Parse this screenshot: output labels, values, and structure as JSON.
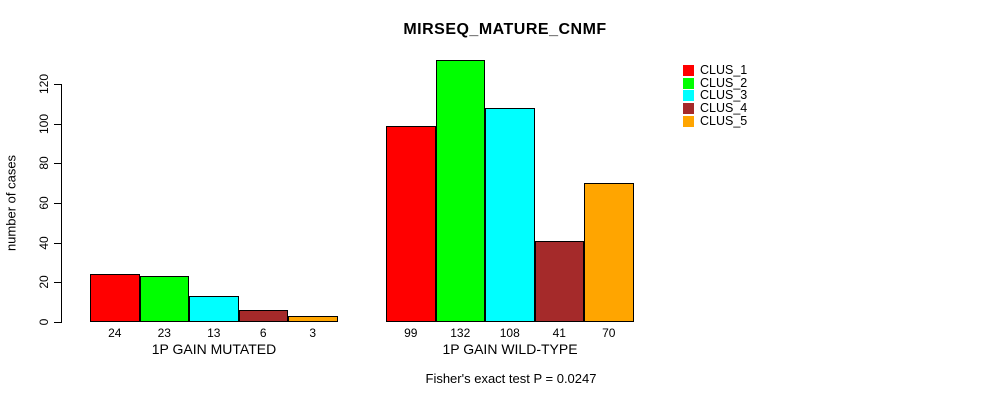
{
  "chart_data": {
    "type": "bar",
    "title": "MIRSEQ_MATURE_CNMF",
    "ylabel": "number of cases",
    "xlabel": "",
    "categories": [
      "1P GAIN MUTATED",
      "1P GAIN WILD-TYPE"
    ],
    "series": [
      {
        "name": "CLUS_1",
        "color": "#FF0000",
        "values": [
          24,
          99
        ]
      },
      {
        "name": "CLUS_2",
        "color": "#00FF00",
        "values": [
          23,
          132
        ]
      },
      {
        "name": "CLUS_3",
        "color": "#00FFFF",
        "values": [
          13,
          108
        ]
      },
      {
        "name": "CLUS_4",
        "color": "#A52A2A",
        "values": [
          6,
          41
        ]
      },
      {
        "name": "CLUS_5",
        "color": "#FFA500",
        "values": [
          3,
          70
        ]
      }
    ],
    "yticks": [
      0,
      20,
      40,
      60,
      80,
      100,
      120
    ],
    "ylim": [
      0,
      132
    ],
    "grid": false,
    "legend_position": "top-right",
    "bar_value_labels_shown": true,
    "annotation": "Fisher's exact test P = 0.0247"
  }
}
